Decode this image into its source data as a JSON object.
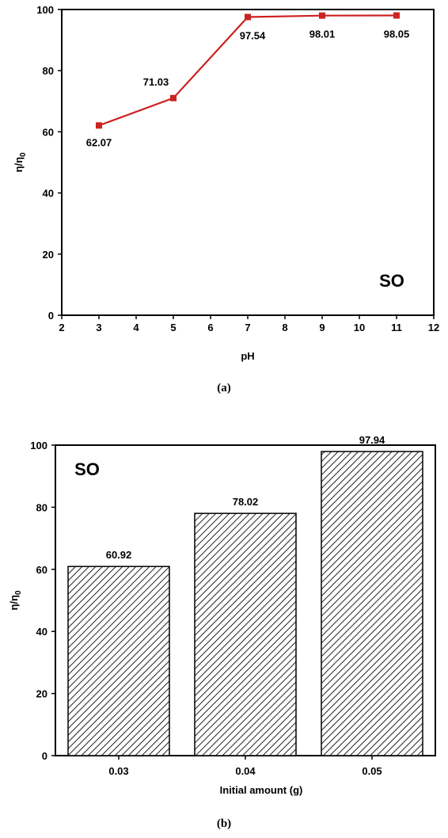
{
  "chart_data": [
    {
      "type": "line",
      "caption": "(a)",
      "panel_label": "SO",
      "xlabel": "pH",
      "ylabel_main": "η/η",
      "ylabel_sub": "0",
      "xlim": [
        2,
        12
      ],
      "ylim": [
        0,
        100
      ],
      "xticks": [
        2,
        3,
        4,
        5,
        6,
        7,
        8,
        9,
        10,
        11,
        12
      ],
      "yticks": [
        0,
        20,
        40,
        60,
        80,
        100
      ],
      "series": [
        {
          "color": "#cc2222",
          "x": [
            3,
            5,
            7,
            9,
            11
          ],
          "y": [
            62.07,
            71.03,
            97.54,
            98.01,
            98.05
          ],
          "labels": [
            "62.07",
            "71.03",
            "97.54",
            "98.01",
            "98.05"
          ]
        }
      ]
    },
    {
      "type": "bar",
      "caption": "(b)",
      "panel_label": "SO",
      "xlabel": "Initial amount (g)",
      "ylabel_main": "η/η",
      "ylabel_sub": "0",
      "ylim": [
        0,
        100
      ],
      "yticks": [
        0,
        20,
        40,
        60,
        80,
        100
      ],
      "categories": [
        "0.03",
        "0.04",
        "0.05"
      ],
      "values": [
        60.92,
        78.02,
        97.94
      ],
      "labels": [
        "60.92",
        "78.02",
        "97.94"
      ],
      "fill": "hatched"
    }
  ]
}
